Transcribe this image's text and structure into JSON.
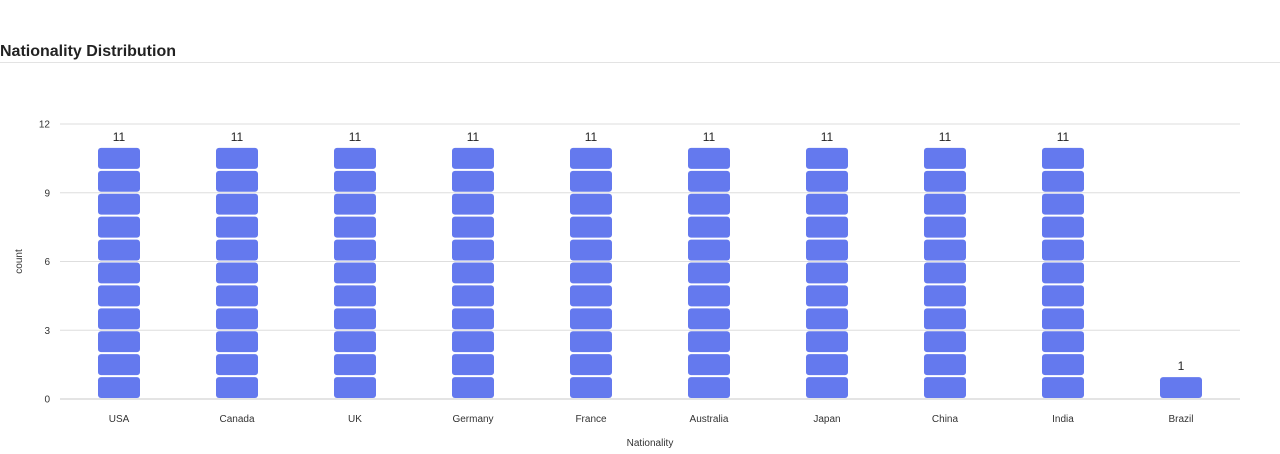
{
  "panel": {
    "title": "Nationality Distribution"
  },
  "chart_data": {
    "type": "bar",
    "style": "stacked-unit-blocks",
    "xlabel": "Nationality",
    "ylabel": "count",
    "categories": [
      "USA",
      "Canada",
      "UK",
      "Germany",
      "France",
      "Australia",
      "Japan",
      "China",
      "India",
      "Brazil"
    ],
    "values": [
      11,
      11,
      11,
      11,
      11,
      11,
      11,
      11,
      11,
      1
    ],
    "ylim": [
      0,
      12
    ],
    "yticks": [
      0,
      3,
      6,
      9,
      12
    ],
    "grid": true,
    "bar_color": "#6479ee"
  }
}
